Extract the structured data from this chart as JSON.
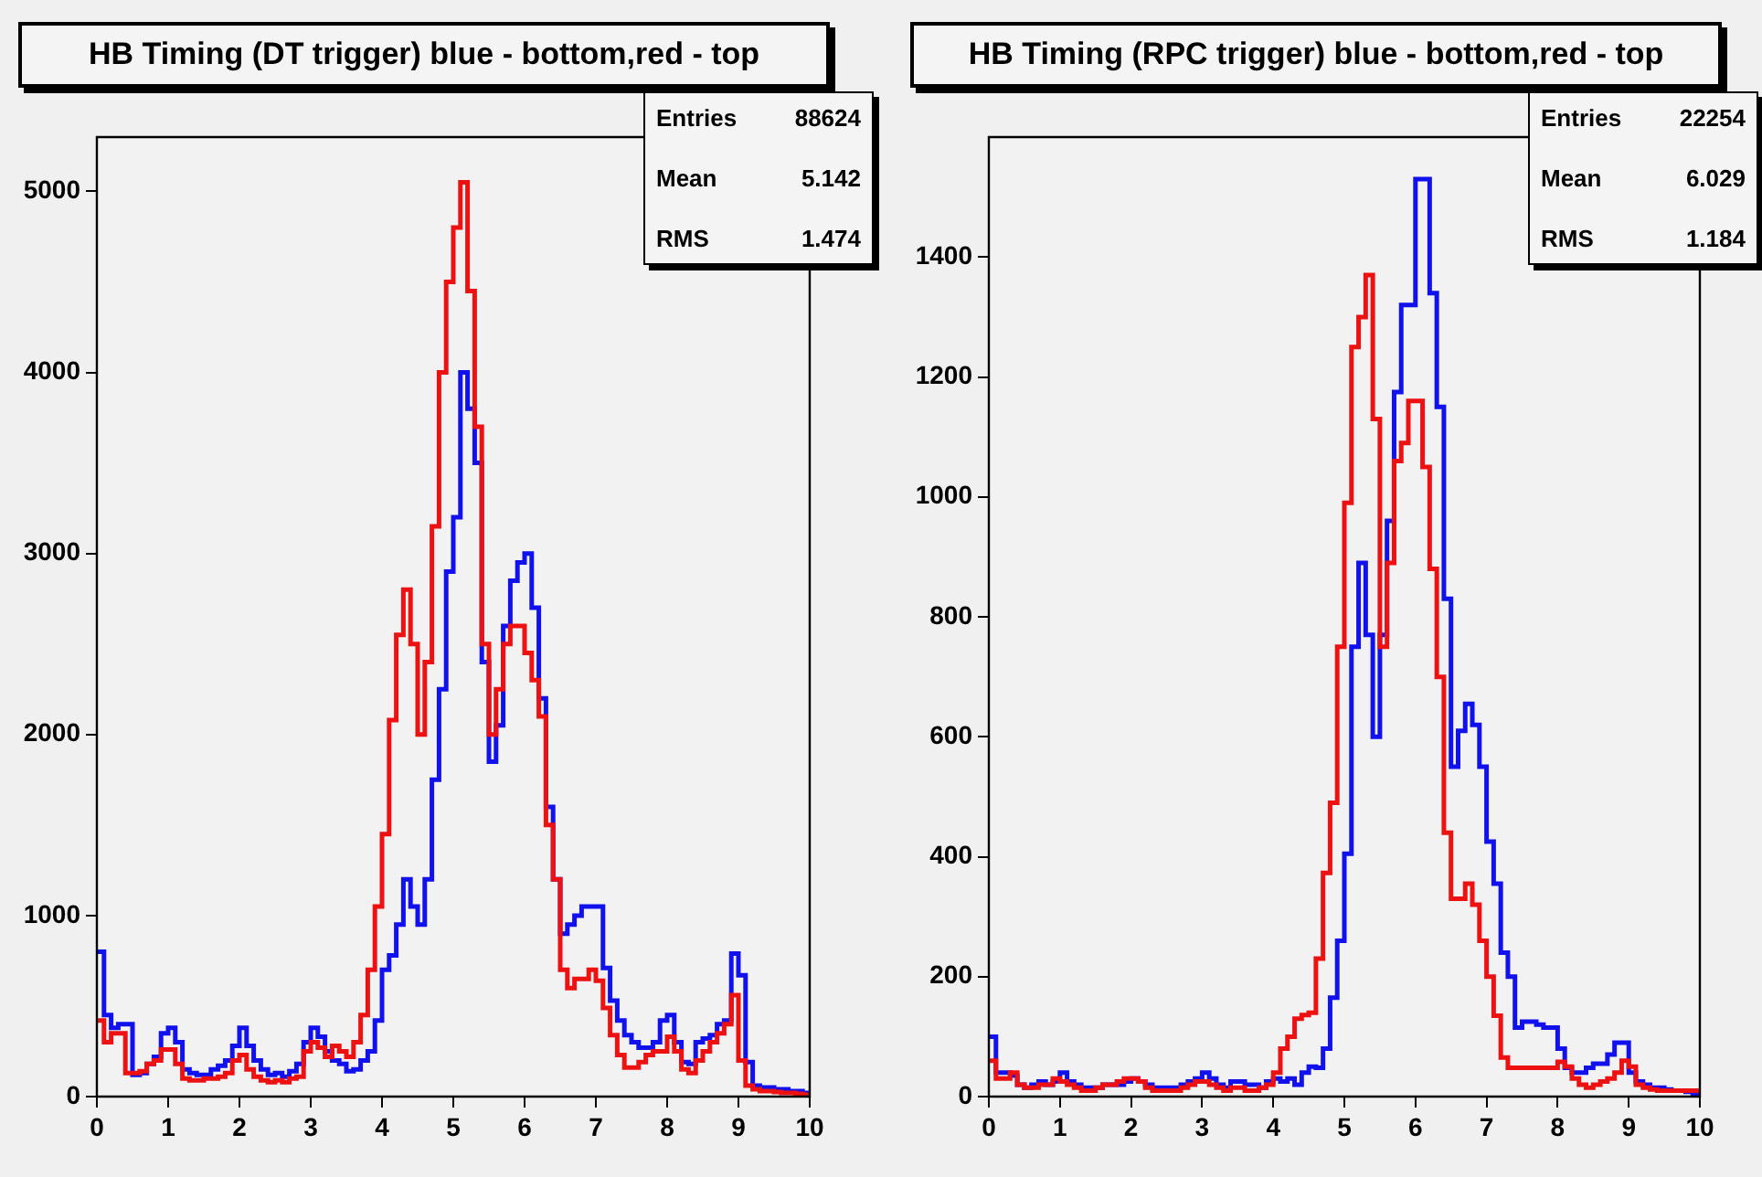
{
  "chart_data": [
    {
      "type": "histogram",
      "title": "HB Timing (DT trigger) blue - bottom,red - top",
      "annotations": [
        "Entries",
        "88624",
        "Mean",
        "5.142",
        "RMS",
        "1.474"
      ],
      "bins": [
        0,
        0.1,
        0.2,
        0.3,
        0.4,
        0.5,
        0.6,
        0.7,
        0.8,
        0.9,
        1,
        1.1,
        1.2,
        1.3,
        1.4,
        1.5,
        1.6,
        1.7,
        1.8,
        1.9,
        2,
        2.1,
        2.2,
        2.3,
        2.4,
        2.5,
        2.6,
        2.7,
        2.8,
        2.9,
        3,
        3.1,
        3.2,
        3.3,
        3.4,
        3.5,
        3.6,
        3.7,
        3.8,
        3.9,
        4,
        4.1,
        4.2,
        4.3,
        4.4,
        4.5,
        4.6,
        4.7,
        4.8,
        4.9,
        5,
        5.1,
        5.2,
        5.3,
        5.4,
        5.5,
        5.6,
        5.7,
        5.8,
        5.9,
        6,
        6.1,
        6.2,
        6.3,
        6.4,
        6.5,
        6.6,
        6.7,
        6.8,
        6.9,
        7,
        7.1,
        7.2,
        7.3,
        7.4,
        7.5,
        7.6,
        7.7,
        7.8,
        7.9,
        8,
        8.1,
        8.2,
        8.3,
        8.4,
        8.5,
        8.6,
        8.7,
        8.8,
        8.9,
        9,
        9.1,
        9.2,
        9.3,
        9.4,
        9.5,
        9.6,
        9.7,
        9.8,
        9.9,
        10
      ],
      "series": [
        {
          "color": "#ee1111",
          "values": [
            420,
            300,
            350,
            350,
            130,
            130,
            140,
            180,
            200,
            260,
            260,
            180,
            100,
            90,
            90,
            100,
            100,
            110,
            130,
            200,
            230,
            150,
            110,
            90,
            80,
            90,
            80,
            100,
            110,
            250,
            300,
            270,
            220,
            280,
            250,
            220,
            300,
            450,
            700,
            1050,
            1450,
            2080,
            2550,
            2800,
            2500,
            2000,
            2400,
            3150,
            4000,
            4500,
            4800,
            5050,
            4450,
            3700,
            2500,
            2000,
            2250,
            2500,
            2600,
            2600,
            2450,
            2300,
            2100,
            1500,
            1200,
            700,
            600,
            650,
            650,
            700,
            640,
            490,
            340,
            230,
            160,
            160,
            190,
            230,
            250,
            250,
            330,
            250,
            150,
            130,
            200,
            250,
            300,
            350,
            400,
            560,
            200,
            60,
            40,
            30,
            30,
            25,
            20,
            20,
            15,
            10
          ]
        },
        {
          "color": "#1111ee",
          "values": [
            800,
            450,
            380,
            400,
            400,
            120,
            130,
            180,
            220,
            350,
            380,
            300,
            150,
            130,
            120,
            120,
            150,
            170,
            200,
            280,
            380,
            280,
            200,
            150,
            120,
            130,
            110,
            140,
            180,
            300,
            380,
            330,
            250,
            200,
            180,
            140,
            150,
            200,
            250,
            420,
            700,
            780,
            950,
            1200,
            1050,
            950,
            1200,
            1750,
            2250,
            2900,
            3200,
            4000,
            3800,
            3500,
            2400,
            1850,
            2050,
            2600,
            2850,
            2950,
            3000,
            2700,
            2200,
            1600,
            1200,
            900,
            950,
            1000,
            1050,
            1050,
            1050,
            710,
            530,
            420,
            340,
            300,
            270,
            270,
            300,
            420,
            450,
            300,
            190,
            180,
            300,
            320,
            340,
            400,
            420,
            790,
            670,
            190,
            60,
            50,
            50,
            40,
            40,
            30,
            30,
            20
          ]
        }
      ],
      "xlim": [
        0,
        10
      ],
      "ylim": [
        0,
        5300
      ],
      "xticks": [
        0,
        1,
        2,
        3,
        4,
        5,
        6,
        7,
        8,
        9,
        10
      ],
      "yticks": [
        0,
        1000,
        2000,
        3000,
        4000,
        5000
      ]
    },
    {
      "type": "histogram",
      "title": "HB Timing (RPC trigger) blue - bottom,red - top",
      "annotations": [
        "Entries",
        "22254",
        "Mean",
        "6.029",
        "RMS",
        "1.184"
      ],
      "bins": [
        0,
        0.1,
        0.2,
        0.3,
        0.4,
        0.5,
        0.6,
        0.7,
        0.8,
        0.9,
        1,
        1.1,
        1.2,
        1.3,
        1.4,
        1.5,
        1.6,
        1.7,
        1.8,
        1.9,
        2,
        2.1,
        2.2,
        2.3,
        2.4,
        2.5,
        2.6,
        2.7,
        2.8,
        2.9,
        3,
        3.1,
        3.2,
        3.3,
        3.4,
        3.5,
        3.6,
        3.7,
        3.8,
        3.9,
        4,
        4.1,
        4.2,
        4.3,
        4.4,
        4.5,
        4.6,
        4.7,
        4.8,
        4.9,
        5,
        5.1,
        5.2,
        5.3,
        5.4,
        5.5,
        5.6,
        5.7,
        5.8,
        5.9,
        6,
        6.1,
        6.2,
        6.3,
        6.4,
        6.5,
        6.6,
        6.7,
        6.8,
        6.9,
        7,
        7.1,
        7.2,
        7.3,
        7.4,
        7.5,
        7.6,
        7.7,
        7.8,
        7.9,
        8,
        8.1,
        8.2,
        8.3,
        8.4,
        8.5,
        8.6,
        8.7,
        8.8,
        8.9,
        9,
        9.1,
        9.2,
        9.3,
        9.4,
        9.5,
        9.6,
        9.7,
        9.8,
        9.9,
        10
      ],
      "series": [
        {
          "color": "#ee1111",
          "values": [
            60,
            30,
            30,
            40,
            20,
            15,
            15,
            20,
            20,
            30,
            25,
            20,
            15,
            10,
            10,
            15,
            20,
            20,
            25,
            30,
            30,
            25,
            15,
            10,
            10,
            10,
            10,
            15,
            20,
            25,
            25,
            20,
            15,
            10,
            15,
            15,
            10,
            10,
            15,
            20,
            40,
            80,
            100,
            130,
            136,
            140,
            230,
            373,
            490,
            750,
            990,
            1250,
            1300,
            1370,
            1130,
            750,
            890,
            1060,
            1090,
            1160,
            1160,
            1050,
            880,
            700,
            440,
            330,
            330,
            355,
            320,
            260,
            200,
            135,
            65,
            48,
            48,
            48,
            48,
            48,
            48,
            48,
            58,
            50,
            30,
            20,
            15,
            20,
            25,
            30,
            40,
            60,
            50,
            20,
            15,
            12,
            10,
            10,
            10,
            10,
            10,
            10
          ]
        },
        {
          "color": "#1111ee",
          "values": [
            100,
            40,
            40,
            35,
            20,
            15,
            20,
            25,
            20,
            25,
            40,
            25,
            20,
            15,
            15,
            15,
            20,
            20,
            20,
            25,
            30,
            25,
            20,
            15,
            15,
            15,
            15,
            20,
            25,
            30,
            40,
            30,
            20,
            15,
            25,
            25,
            20,
            20,
            15,
            25,
            30,
            25,
            30,
            20,
            40,
            50,
            48,
            80,
            165,
            260,
            405,
            750,
            890,
            770,
            600,
            770,
            960,
            1175,
            1320,
            1320,
            1530,
            1530,
            1340,
            1150,
            830,
            550,
            610,
            655,
            620,
            550,
            425,
            355,
            240,
            200,
            115,
            125,
            125,
            120,
            115,
            115,
            80,
            48,
            40,
            40,
            48,
            55,
            55,
            70,
            90,
            90,
            40,
            25,
            20,
            15,
            15,
            12,
            10,
            10,
            8,
            5
          ]
        }
      ],
      "xlim": [
        0,
        10
      ],
      "ylim": [
        0,
        1600
      ],
      "xticks": [
        0,
        1,
        2,
        3,
        4,
        5,
        6,
        7,
        8,
        9,
        10
      ],
      "yticks": [
        0,
        200,
        400,
        600,
        800,
        1000,
        1200,
        1400
      ]
    }
  ]
}
